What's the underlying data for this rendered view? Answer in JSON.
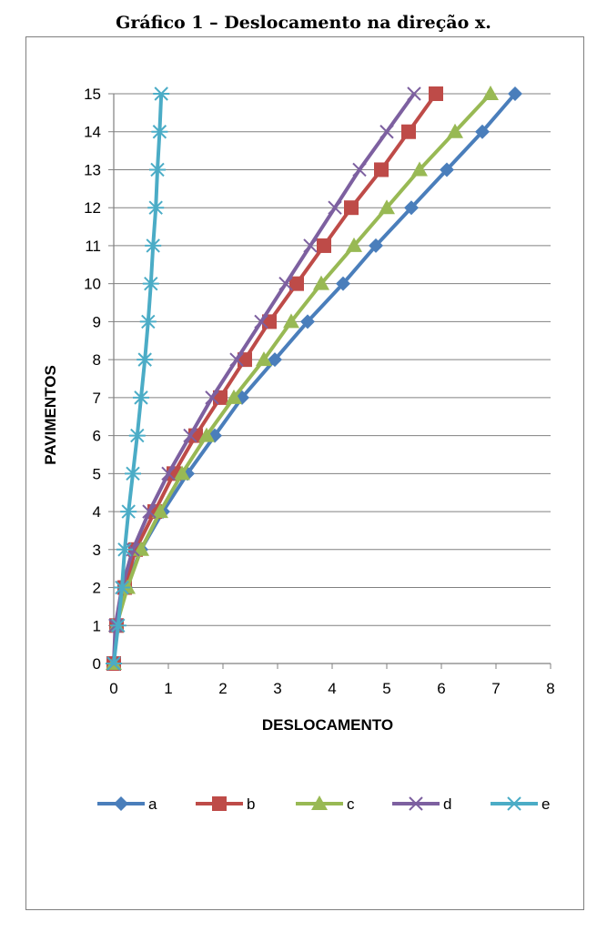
{
  "figure_title": "Gráfico 1 – Deslocamento na direção x.",
  "chart_data": {
    "type": "line",
    "title": "Gráfico 1 – Deslocamento na direção x.",
    "xlabel": "DESLOCAMENTO",
    "ylabel": "PAVIMENTOS",
    "xlim": [
      0,
      8
    ],
    "ylim": [
      0,
      15
    ],
    "xticks": [
      "0",
      "1",
      "2",
      "3",
      "4",
      "5",
      "6",
      "7",
      "8"
    ],
    "yticks": [
      "0",
      "1",
      "2",
      "3",
      "4",
      "5",
      "6",
      "7",
      "8",
      "9",
      "10",
      "11",
      "12",
      "13",
      "14",
      "15"
    ],
    "grid": "horizontal",
    "legend_position": "bottom",
    "series": [
      {
        "name": "a",
        "color": "#4a7ebb",
        "marker": "diamond",
        "x": [
          0,
          0.05,
          0.22,
          0.5,
          0.9,
          1.35,
          1.85,
          2.35,
          2.95,
          3.55,
          4.2,
          4.8,
          5.45,
          6.1,
          6.75,
          7.35
        ]
      },
      {
        "name": "b",
        "color": "#be4b48",
        "marker": "square",
        "x": [
          0,
          0.05,
          0.2,
          0.4,
          0.75,
          1.1,
          1.5,
          1.95,
          2.4,
          2.85,
          3.35,
          3.85,
          4.35,
          4.9,
          5.4,
          5.9
        ]
      },
      {
        "name": "c",
        "color": "#98b954",
        "marker": "triangle",
        "x": [
          0,
          0.05,
          0.25,
          0.5,
          0.85,
          1.25,
          1.7,
          2.2,
          2.75,
          3.25,
          3.8,
          4.4,
          5.0,
          5.6,
          6.25,
          6.9
        ]
      },
      {
        "name": "d",
        "color": "#7d60a0",
        "marker": "x",
        "x": [
          0,
          0.03,
          0.15,
          0.35,
          0.65,
          1.0,
          1.4,
          1.8,
          2.25,
          2.7,
          3.15,
          3.6,
          4.05,
          4.5,
          5.0,
          5.5
        ]
      },
      {
        "name": "e",
        "color": "#4bacc6",
        "marker": "star",
        "x": [
          0,
          0.08,
          0.15,
          0.2,
          0.27,
          0.35,
          0.43,
          0.5,
          0.57,
          0.63,
          0.68,
          0.72,
          0.77,
          0.8,
          0.84,
          0.87
        ]
      }
    ]
  }
}
